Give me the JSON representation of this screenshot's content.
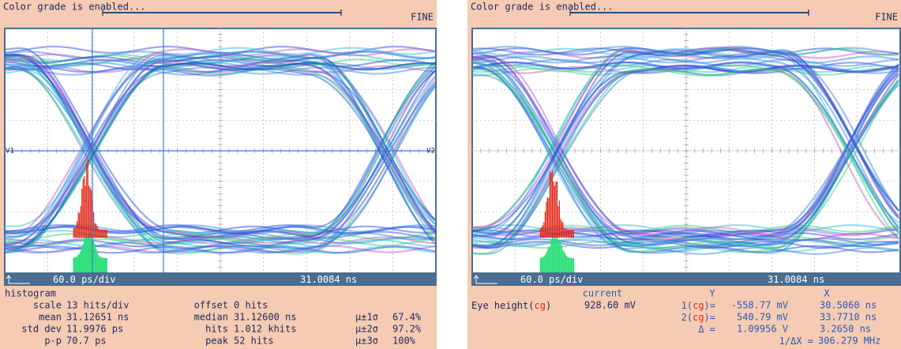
{
  "panels": [
    {
      "header": "Color grade is enabled...",
      "mode": "FINE",
      "markers": [
        "V1",
        "V2"
      ],
      "status": {
        "scale": "60.0 ps/div",
        "position": "31.0084 ns"
      },
      "histogram": {
        "title": "histogram",
        "rows": [
          [
            "scale",
            "13 hits/div",
            "offset",
            "0 hits"
          ],
          [
            "mean",
            "31.12651 ns",
            "median",
            "31.12600 ns",
            "μ±1σ",
            "67.4%"
          ],
          [
            "std dev",
            "11.9976 ps",
            "hits",
            "1.012 khits",
            "μ±2σ",
            "97.2%"
          ],
          [
            "p-p",
            "70.7 ps",
            "peak",
            "52 hits",
            "μ±3σ",
            "100%"
          ]
        ]
      }
    },
    {
      "header": "Color grade is enabled...",
      "mode": "FINE",
      "status": {
        "scale": "60.0 ps/div",
        "position": "31.0084 ns"
      },
      "measurements": {
        "header": [
          "current",
          "Y",
          "X"
        ],
        "eye": {
          "label": "Eye height(",
          "tag": "cg",
          "close": ")",
          "value": "928.60 mV"
        },
        "rows": [
          {
            "label": "1(",
            "tag": "cg",
            "close": ")=",
            "y": "-558.77 mV",
            "x": "30.5060 ns"
          },
          {
            "label": "2(",
            "tag": "cg",
            "close": ")=",
            "y": "540.79 mV",
            "x": "33.7710 ns"
          },
          {
            "label": "Δ =",
            "y": "1.09956 V",
            "x": "3.2650 ns"
          },
          {
            "label": "1/ΔX =",
            "x": "306.279 MHz"
          }
        ]
      }
    }
  ]
}
